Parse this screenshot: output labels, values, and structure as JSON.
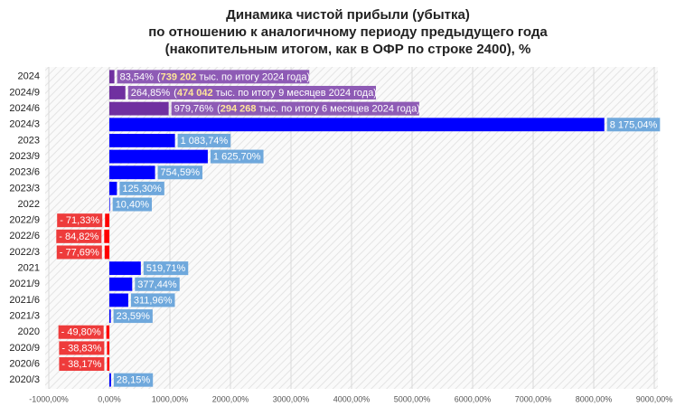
{
  "chart_data": {
    "type": "hbar",
    "title": [
      "Динамика чистой прибыли (убытка)",
      "по отношению к аналогичному периоду предыдущего года",
      "(накопительным итогом, как в ОФР по строке 2400), %"
    ],
    "categories": [
      "2024",
      "2024/9",
      "2024/6",
      "2024/3",
      "2023",
      "2023/9",
      "2023/6",
      "2023/3",
      "2022",
      "2022/9",
      "2022/6",
      "2022/3",
      "2021",
      "2021/9",
      "2021/6",
      "2021/3",
      "2020",
      "2020/9",
      "2020/6",
      "2020/3"
    ],
    "values": [
      83.54,
      264.85,
      979.76,
      8175.04,
      1083.74,
      1625.7,
      754.59,
      125.3,
      10.4,
      -71.33,
      -84.82,
      -77.69,
      519.71,
      377.44,
      311.96,
      23.59,
      -49.8,
      -38.83,
      -38.17,
      28.15
    ],
    "value_labels": [
      "83,54%",
      "264,85%",
      "979,76%",
      "8 175,04%",
      "1 083,74%",
      "1 625,70%",
      "754,59%",
      "125,30%",
      "10,40%",
      "- 71,33%",
      "- 84,82%",
      "- 77,69%",
      "519,71%",
      "377,44%",
      "311,96%",
      "23,59%",
      "- 49,80%",
      "- 38,83%",
      "- 38,17%",
      "28,15%"
    ],
    "annotations": [
      {
        "open": "(",
        "bold": "739 202",
        "text": " тыс. по итогу 2024 года)"
      },
      {
        "open": "(",
        "bold": "474 042",
        "text": " тыс. по итогу 9 месяцев 2024 года)"
      },
      {
        "open": "(",
        "bold": "294 268",
        "text": " тыс. по итогу 6 месяцев 2024 года)"
      },
      null,
      null,
      null,
      null,
      null,
      null,
      null,
      null,
      null,
      null,
      null,
      null,
      null,
      null,
      null,
      null,
      null
    ],
    "colors": [
      "#7030a0",
      "#7030a0",
      "#7030a0",
      "#0000ff",
      "#0000ff",
      "#0000ff",
      "#0000ff",
      "#0000ff",
      "#0000ff",
      "#ff0000",
      "#ff0000",
      "#ff0000",
      "#0000ff",
      "#0000ff",
      "#0000ff",
      "#0000ff",
      "#ff0000",
      "#ff0000",
      "#ff0000",
      "#0000ff"
    ],
    "label_colors": [
      "#8e5bb5",
      "#8e5bb5",
      "#8e5bb5",
      "#6fa8dc",
      "#6fa8dc",
      "#6fa8dc",
      "#6fa8dc",
      "#6fa8dc",
      "#6fa8dc",
      "#ee3b3b",
      "#ee3b3b",
      "#ee3b3b",
      "#6fa8dc",
      "#6fa8dc",
      "#6fa8dc",
      "#6fa8dc",
      "#ee3b3b",
      "#ee3b3b",
      "#ee3b3b",
      "#6fa8dc"
    ],
    "xlim": [
      -1000,
      9000
    ],
    "xticks": [
      {
        "value": -1000,
        "label": "-1000,00%"
      },
      {
        "value": 0,
        "label": "0,00%"
      },
      {
        "value": 1000,
        "label": "1000,00%"
      },
      {
        "value": 2000,
        "label": "2000,00%"
      },
      {
        "value": 3000,
        "label": "3000,00%"
      },
      {
        "value": 4000,
        "label": "4000,00%"
      },
      {
        "value": 5000,
        "label": "5000,00%"
      },
      {
        "value": 6000,
        "label": "6000,00%"
      },
      {
        "value": 7000,
        "label": "7000,00%"
      },
      {
        "value": 8000,
        "label": "8000,00%"
      },
      {
        "value": 9000,
        "label": "9000,00%"
      }
    ],
    "grid": true
  }
}
